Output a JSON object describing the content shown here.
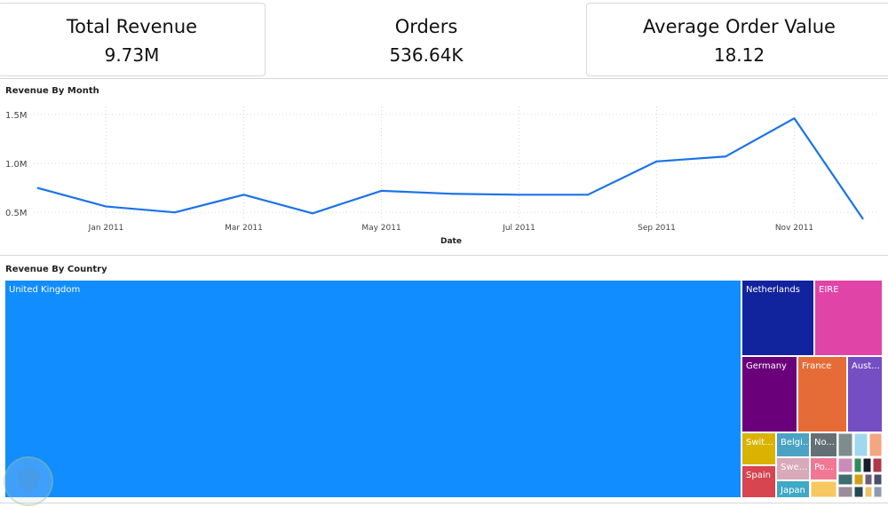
{
  "kpis": [
    {
      "label": "Total Revenue",
      "value": "9.73M"
    },
    {
      "label": "Orders",
      "value": "536.64K"
    },
    {
      "label": "Average Order Value",
      "value": "18.12"
    }
  ],
  "chart_data": [
    {
      "type": "line",
      "title": "Revenue By Month",
      "xlabel": "Date",
      "ylabel": "",
      "x": [
        "2010-12",
        "2011-01",
        "2011-02",
        "2011-03",
        "2011-04",
        "2011-05",
        "2011-06",
        "2011-07",
        "2011-08",
        "2011-09",
        "2011-10",
        "2011-11",
        "2011-12"
      ],
      "x_tick_labels": [
        "",
        "Jan 2011",
        "",
        "Mar 2011",
        "",
        "May 2011",
        "",
        "Jul 2011",
        "",
        "Sep 2011",
        "",
        "Nov 2011",
        ""
      ],
      "series": [
        {
          "values": [
            0.75,
            0.56,
            0.5,
            0.68,
            0.49,
            0.72,
            0.69,
            0.68,
            0.68,
            1.02,
            1.07,
            1.46,
            0.43
          ]
        }
      ],
      "y_ticks": [
        0.5,
        1.0,
        1.5
      ],
      "y_tick_labels": [
        "0.5M",
        "1.0M",
        "1.5M"
      ],
      "ylim": [
        0.42,
        1.58
      ],
      "grid": true,
      "color": "#1a73e8"
    },
    {
      "type": "treemap",
      "title": "Revenue By Country",
      "categories": [
        "United Kingdom",
        "Netherlands",
        "EIRE",
        "Germany",
        "France",
        "Aust...",
        "Swit...",
        "Belgi...",
        "No...",
        "Spain",
        "Swe...",
        "Po...",
        "Japan"
      ],
      "colors": [
        "#118dff",
        "#12239e",
        "#e044a7",
        "#6b007b",
        "#e66c37",
        "#744ec2",
        "#d9b300",
        "#4aa3c4",
        "#657075",
        "#d64550",
        "#d8a9b8",
        "#f07895",
        "#3fa9c6"
      ]
    }
  ]
}
